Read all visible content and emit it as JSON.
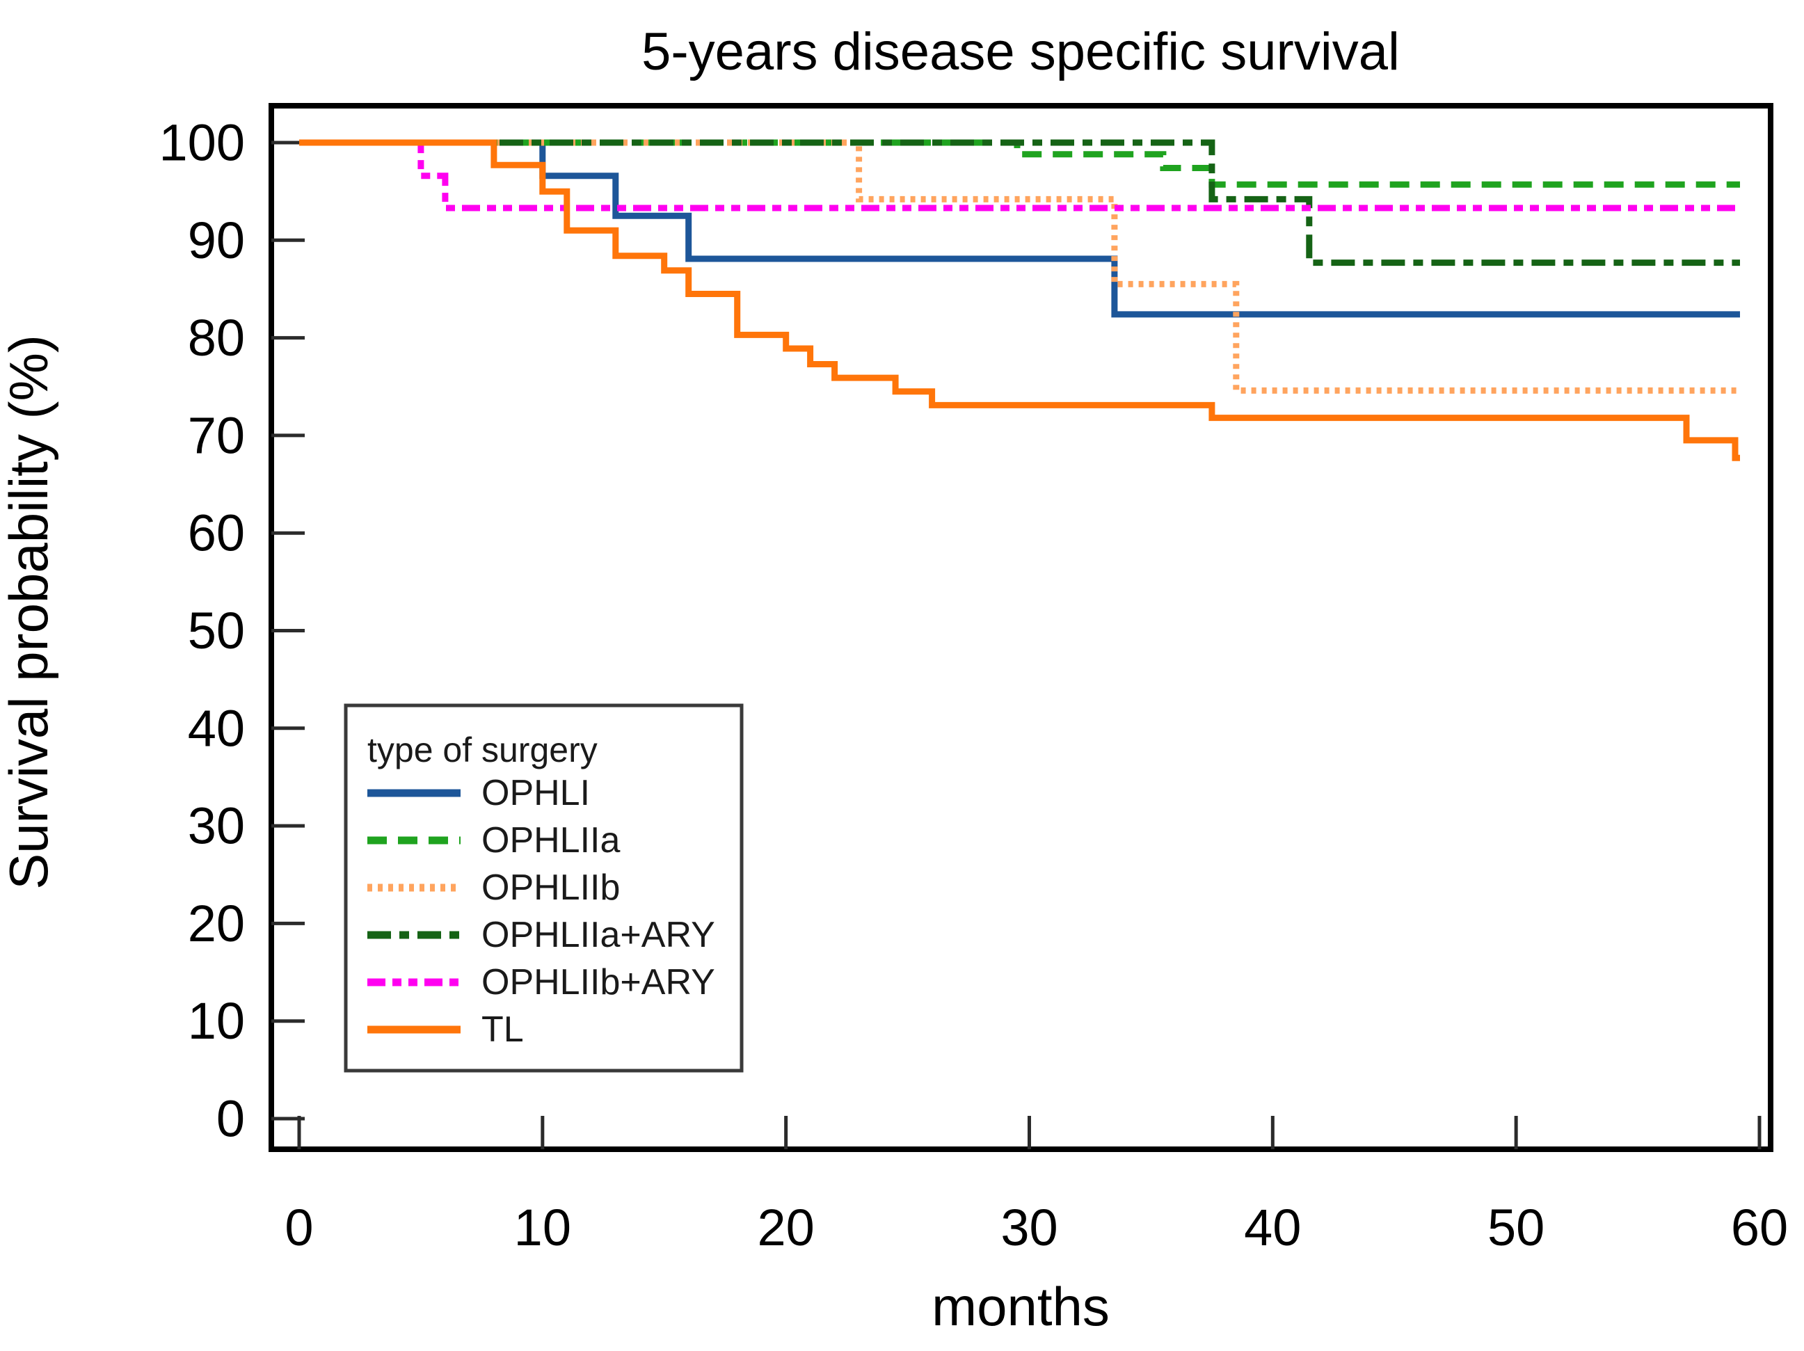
{
  "page_title": "5-years disease specific survival",
  "chart_data": {
    "type": "line",
    "subtype": "kaplan-meier-step",
    "title": "5-years disease specific survival",
    "xlabel": "months",
    "ylabel": "Survival probability (%)",
    "xlim": [
      0,
      61.5
    ],
    "ylim": [
      0,
      103.6
    ],
    "xticks": [
      0,
      10,
      20,
      30,
      40,
      50,
      60
    ],
    "yticks": [
      0,
      10,
      20,
      30,
      40,
      50,
      60,
      70,
      80,
      90,
      100
    ],
    "grid": false,
    "legend_title": "type of surgery",
    "legend_position": "lower-left",
    "series": [
      {
        "name": "OPHLI",
        "color": "#1d5699",
        "style": "solid",
        "points": [
          [
            0,
            100
          ],
          [
            10,
            96.6
          ],
          [
            13,
            92.5
          ],
          [
            16,
            88.1
          ],
          [
            33.5,
            82.4
          ],
          [
            59.2,
            82.4
          ]
        ]
      },
      {
        "name": "OPHLIIa",
        "color": "#1fa31f",
        "style": "dashed",
        "points": [
          [
            0,
            100
          ],
          [
            29.5,
            98.8
          ],
          [
            35.5,
            97.4
          ],
          [
            37.5,
            95.7
          ],
          [
            59.2,
            95.7
          ]
        ]
      },
      {
        "name": "OPHLIIb",
        "color": "#ffa45e",
        "style": "dotted",
        "points": [
          [
            0,
            100
          ],
          [
            23,
            94.2
          ],
          [
            33.5,
            85.5
          ],
          [
            38.5,
            74.6
          ],
          [
            59.2,
            74.6
          ]
        ]
      },
      {
        "name": "OPHLIIa+ARY",
        "color": "#156315",
        "style": "dashdot",
        "points": [
          [
            0,
            100
          ],
          [
            37.5,
            94.2
          ],
          [
            41.5,
            87.7
          ],
          [
            59.2,
            87.7
          ]
        ]
      },
      {
        "name": "OPHLIIb+ARY",
        "color": "#ff00f0",
        "style": "dashdotdot",
        "points": [
          [
            0,
            100
          ],
          [
            5,
            96.6
          ],
          [
            6,
            93.3
          ],
          [
            59.2,
            93.3
          ]
        ]
      },
      {
        "name": "TL",
        "color": "#ff750a",
        "style": "solid",
        "points": [
          [
            0,
            100
          ],
          [
            8,
            97.7
          ],
          [
            10,
            95.0
          ],
          [
            11,
            91.0
          ],
          [
            13,
            88.4
          ],
          [
            15,
            86.9
          ],
          [
            16,
            84.5
          ],
          [
            18,
            80.3
          ],
          [
            20,
            78.9
          ],
          [
            21,
            77.3
          ],
          [
            22,
            75.9
          ],
          [
            24.5,
            74.5
          ],
          [
            26,
            73.1
          ],
          [
            37.5,
            71.8
          ],
          [
            57,
            69.5
          ],
          [
            59,
            67.7
          ],
          [
            59.2,
            67.7
          ]
        ]
      }
    ]
  }
}
